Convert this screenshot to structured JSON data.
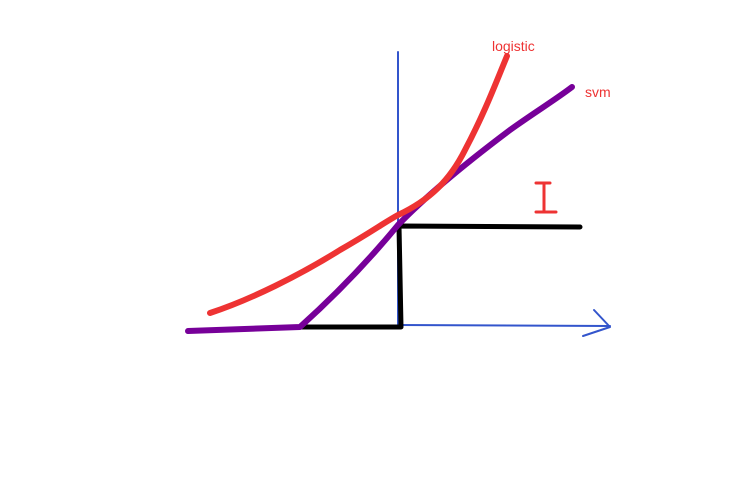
{
  "labels": {
    "logistic": "logistic",
    "svm": "svm",
    "cursor_glyph": "I"
  },
  "colors": {
    "background": "#ffffff",
    "axes": "#3355cc",
    "logistic": "#ee3333",
    "svm": "#770099",
    "step": "#000000",
    "cursor": "#ee3333"
  },
  "curves": [
    {
      "name": "logistic",
      "color_key": "logistic"
    },
    {
      "name": "svm",
      "color_key": "svm"
    },
    {
      "name": "step",
      "color_key": "step"
    }
  ]
}
